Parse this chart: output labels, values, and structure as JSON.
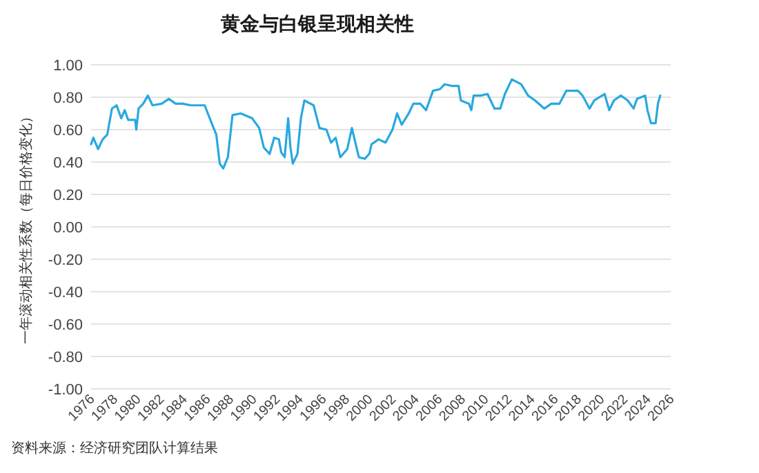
{
  "chart_data": {
    "type": "line",
    "title": "黄金与白银呈现相关性",
    "ylabel": "一年滚动相关性系数（每日价格变化）",
    "annotations": [
      "资料来源：经济研究团队计算结果"
    ],
    "xlim": [
      1976,
      2026
    ],
    "xticks": [
      1976,
      1978,
      1980,
      1982,
      1984,
      1986,
      1988,
      1990,
      1992,
      1994,
      1996,
      1998,
      2000,
      2002,
      2004,
      2006,
      2008,
      2010,
      2012,
      2014,
      2016,
      2018,
      2020,
      2022,
      2024,
      2026
    ],
    "ylim": [
      -1,
      1
    ],
    "yticks": [
      {
        "value": -1,
        "label": "-1.00"
      },
      {
        "value": -0.8,
        "label": "-0.80"
      },
      {
        "value": -0.6,
        "label": "-0.60"
      },
      {
        "value": -0.4,
        "label": "-0.40"
      },
      {
        "value": -0.2,
        "label": "-0.20"
      },
      {
        "value": 0,
        "label": "0.00"
      },
      {
        "value": 0.2,
        "label": "0.20"
      },
      {
        "value": 0.4,
        "label": "0.40"
      },
      {
        "value": 0.6,
        "label": "0.60"
      },
      {
        "value": 0.8,
        "label": "0.80"
      },
      {
        "value": 1,
        "label": "1.00"
      }
    ],
    "grid": "y",
    "series": [
      {
        "color": "#29a8e0",
        "x": [
          1976.0,
          1976.2,
          1976.6,
          1977.0,
          1977.4,
          1977.8,
          1978.2,
          1978.6,
          1978.9,
          1979.2,
          1979.8,
          1979.9,
          1980.1,
          1980.5,
          1980.9,
          1981.3,
          1982.1,
          1982.7,
          1983.3,
          1983.9,
          1984.6,
          1985.8,
          1986.4,
          1986.8,
          1987.1,
          1987.4,
          1987.8,
          1988.2,
          1988.9,
          1989.9,
          1990.5,
          1990.9,
          1991.4,
          1991.8,
          1992.2,
          1992.4,
          1992.7,
          1993.0,
          1993.2,
          1993.4,
          1993.8,
          1994.1,
          1994.4,
          1995.2,
          1995.7,
          1996.3,
          1996.7,
          1997.1,
          1997.5,
          1998.1,
          1998.5,
          1998.7,
          1999.1,
          1999.6,
          2000.0,
          2000.2,
          2000.8,
          2001.4,
          2002.0,
          2002.4,
          2002.8,
          2003.4,
          2003.8,
          2004.4,
          2004.9,
          2005.5,
          2006.1,
          2006.5,
          2007.1,
          2007.7,
          2007.9,
          2008.6,
          2008.8,
          2009.0,
          2009.6,
          2010.2,
          2010.8,
          2011.3,
          2011.7,
          2012.3,
          2013.1,
          2013.7,
          2014.3,
          2015.1,
          2015.7,
          2016.4,
          2017.0,
          2018.0,
          2018.4,
          2019.0,
          2019.4,
          2020.3,
          2020.7,
          2021.1,
          2021.7,
          2022.3,
          2022.8,
          2023.1,
          2023.8,
          2024.0,
          2024.3,
          2024.7,
          2024.9,
          2025.1
        ],
        "values": [
          0.51,
          0.55,
          0.48,
          0.54,
          0.57,
          0.73,
          0.75,
          0.67,
          0.72,
          0.66,
          0.66,
          0.6,
          0.73,
          0.76,
          0.81,
          0.75,
          0.76,
          0.79,
          0.76,
          0.76,
          0.75,
          0.75,
          0.64,
          0.57,
          0.39,
          0.36,
          0.43,
          0.69,
          0.7,
          0.67,
          0.61,
          0.49,
          0.45,
          0.55,
          0.54,
          0.46,
          0.43,
          0.67,
          0.49,
          0.39,
          0.45,
          0.67,
          0.78,
          0.75,
          0.61,
          0.6,
          0.52,
          0.55,
          0.43,
          0.48,
          0.61,
          0.55,
          0.43,
          0.42,
          0.45,
          0.51,
          0.54,
          0.52,
          0.6,
          0.7,
          0.63,
          0.7,
          0.76,
          0.76,
          0.72,
          0.84,
          0.85,
          0.88,
          0.87,
          0.87,
          0.78,
          0.76,
          0.72,
          0.81,
          0.81,
          0.82,
          0.73,
          0.73,
          0.82,
          0.91,
          0.88,
          0.81,
          0.78,
          0.73,
          0.76,
          0.76,
          0.84,
          0.84,
          0.81,
          0.73,
          0.78,
          0.82,
          0.72,
          0.78,
          0.81,
          0.78,
          0.73,
          0.79,
          0.81,
          0.72,
          0.64,
          0.64,
          0.76,
          0.81
        ]
      }
    ]
  }
}
